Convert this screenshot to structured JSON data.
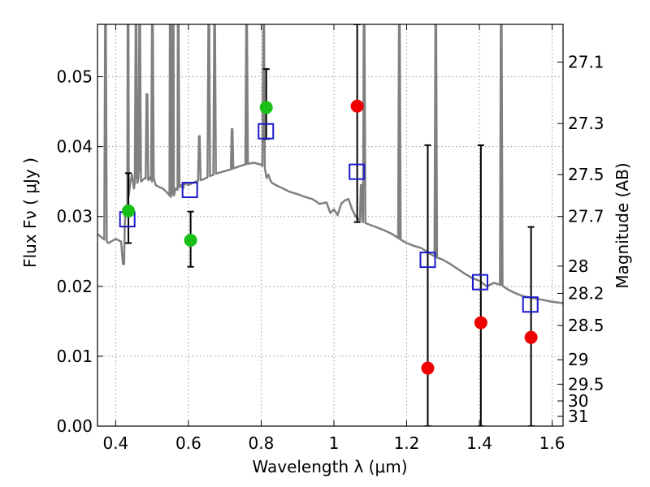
{
  "chart_data": {
    "type": "scatter",
    "xlabel": "Wavelength  λ (μm)",
    "ylabel": "Flux  Fν  ( μJy )",
    "y2label": "Magnitude (AB)",
    "xlim": [
      0.35,
      1.63
    ],
    "ylim": [
      0.0,
      0.0575
    ],
    "grid": true,
    "x_ticks": [
      0.4,
      0.6,
      0.8,
      1.0,
      1.2,
      1.4,
      1.6
    ],
    "x_tick_labels": [
      "0.4",
      "0.6",
      "0.8",
      "1",
      "1.2",
      "1.4",
      "1.6"
    ],
    "y_ticks": [
      0.0,
      0.01,
      0.02,
      0.03,
      0.04,
      0.05
    ],
    "y_tick_labels": [
      "0.00",
      "0.01",
      "0.02",
      "0.03",
      "0.04",
      "0.05"
    ],
    "mag_ticks": [
      {
        "label": "27.1",
        "flux": 0.0521
      },
      {
        "label": "27.3",
        "flux": 0.0433
      },
      {
        "label": "27.5",
        "flux": 0.036
      },
      {
        "label": "27.7",
        "flux": 0.03
      },
      {
        "label": "28",
        "flux": 0.0229
      },
      {
        "label": "28.2",
        "flux": 0.019
      },
      {
        "label": "28.5",
        "flux": 0.0144
      },
      {
        "label": "29",
        "flux": 0.0095
      },
      {
        "label": "29.5",
        "flux": 0.006
      },
      {
        "label": "30",
        "flux": 0.0036
      },
      {
        "label": "31",
        "flux": 0.0014
      }
    ],
    "colors": {
      "sed": "#808080",
      "green": "#18c018",
      "red": "#ee0000",
      "model_box": "#1a1acc",
      "errorbar": "#000000",
      "grid": "#9a9a9a"
    },
    "model_sed": {
      "x": [
        0.35,
        0.38,
        0.4,
        0.415,
        0.42,
        0.423,
        0.425,
        0.428,
        0.432,
        0.436,
        0.44,
        0.445,
        0.45,
        0.455,
        0.46,
        0.465,
        0.47,
        0.48,
        0.49,
        0.495,
        0.5,
        0.505,
        0.51,
        0.52,
        0.53,
        0.54,
        0.548,
        0.552,
        0.556,
        0.56,
        0.565,
        0.57,
        0.58,
        0.585,
        0.59,
        0.6,
        0.62,
        0.64,
        0.66,
        0.68,
        0.7,
        0.72,
        0.74,
        0.76,
        0.78,
        0.8,
        0.81,
        0.815,
        0.82,
        0.825,
        0.83,
        0.84,
        0.86,
        0.88,
        0.9,
        0.92,
        0.94,
        0.95,
        0.96,
        0.98,
        0.99,
        1.0,
        1.01,
        1.02,
        1.03,
        1.04,
        1.05,
        1.06,
        1.07,
        1.08,
        1.1,
        1.12,
        1.14,
        1.16,
        1.18,
        1.2,
        1.22,
        1.24,
        1.26,
        1.28,
        1.3,
        1.32,
        1.34,
        1.36,
        1.38,
        1.4,
        1.42,
        1.44,
        1.46,
        1.48,
        1.5,
        1.52,
        1.54,
        1.56,
        1.58,
        1.6,
        1.63
      ],
      "y": [
        0.0275,
        0.0262,
        0.0268,
        0.0264,
        0.0232,
        0.0232,
        0.029,
        0.031,
        0.0318,
        0.033,
        0.0348,
        0.036,
        0.034,
        0.0355,
        0.0348,
        0.0365,
        0.035,
        0.0355,
        0.0352,
        0.0356,
        0.035,
        0.0354,
        0.0345,
        0.0342,
        0.034,
        0.0335,
        0.033,
        0.0328,
        0.0335,
        0.033,
        0.034,
        0.0338,
        0.0345,
        0.034,
        0.0348,
        0.0345,
        0.035,
        0.0353,
        0.0358,
        0.0362,
        0.0365,
        0.0368,
        0.0372,
        0.0375,
        0.0377,
        0.0374,
        0.037,
        0.0355,
        0.036,
        0.0352,
        0.0348,
        0.0345,
        0.034,
        0.0335,
        0.0332,
        0.0328,
        0.0325,
        0.0322,
        0.0318,
        0.032,
        0.0305,
        0.031,
        0.0302,
        0.0318,
        0.0323,
        0.0325,
        0.031,
        0.03,
        0.0295,
        0.0292,
        0.0288,
        0.0284,
        0.028,
        0.0275,
        0.0268,
        0.0262,
        0.0258,
        0.0255,
        0.0248,
        0.0242,
        0.0238,
        0.0232,
        0.0225,
        0.0218,
        0.0212,
        0.0208,
        0.02,
        0.0205,
        0.0202,
        0.0195,
        0.019,
        0.0186,
        0.0184,
        0.0182,
        0.018,
        0.0178,
        0.0176
      ],
      "emission_lines": [
        {
          "x": 0.372,
          "peak": 0.0575
        },
        {
          "x": 0.434,
          "peak": 0.0575
        },
        {
          "x": 0.456,
          "peak": 0.0575
        },
        {
          "x": 0.466,
          "peak": 0.0575
        },
        {
          "x": 0.486,
          "peak": 0.0475
        },
        {
          "x": 0.501,
          "peak": 0.0575
        },
        {
          "x": 0.55,
          "peak": 0.0575
        },
        {
          "x": 0.558,
          "peak": 0.0575
        },
        {
          "x": 0.572,
          "peak": 0.0575
        },
        {
          "x": 0.63,
          "peak": 0.0415
        },
        {
          "x": 0.656,
          "peak": 0.0575
        },
        {
          "x": 0.672,
          "peak": 0.0575
        },
        {
          "x": 0.72,
          "peak": 0.0425
        },
        {
          "x": 0.76,
          "peak": 0.0575
        },
        {
          "x": 0.807,
          "peak": 0.0575
        },
        {
          "x": 1.075,
          "peak": 0.0345
        },
        {
          "x": 1.083,
          "peak": 0.0575
        },
        {
          "x": 1.18,
          "peak": 0.0575
        },
        {
          "x": 1.28,
          "peak": 0.0575
        },
        {
          "x": 1.46,
          "peak": 0.0575
        }
      ]
    },
    "green_points": [
      {
        "x": 0.435,
        "y": 0.0308
      },
      {
        "x": 0.606,
        "y": 0.0266
      },
      {
        "x": 0.814,
        "y": 0.0456
      }
    ],
    "red_points": [
      {
        "x": 1.064,
        "y": 0.0458
      },
      {
        "x": 1.258,
        "y": 0.0083
      },
      {
        "x": 1.404,
        "y": 0.0148
      },
      {
        "x": 1.542,
        "y": 0.0127
      }
    ],
    "model_photometry": [
      {
        "x": 0.432,
        "y": 0.0296
      },
      {
        "x": 0.604,
        "y": 0.0338
      },
      {
        "x": 0.813,
        "y": 0.0422
      },
      {
        "x": 1.063,
        "y": 0.0364
      },
      {
        "x": 1.258,
        "y": 0.0238
      },
      {
        "x": 1.402,
        "y": 0.0206
      },
      {
        "x": 1.54,
        "y": 0.0174
      }
    ],
    "error_bars": [
      {
        "x": 0.435,
        "lo": 0.0262,
        "hi": 0.0362
      },
      {
        "x": 0.606,
        "lo": 0.0228,
        "hi": 0.0307
      },
      {
        "x": 0.814,
        "lo": 0.0411,
        "hi": 0.0511
      },
      {
        "x": 1.064,
        "lo": 0.0292,
        "hi": 0.0575
      },
      {
        "x": 1.258,
        "lo": 0.0,
        "hi": 0.0402
      },
      {
        "x": 1.404,
        "lo": 0.0,
        "hi": 0.0402
      },
      {
        "x": 1.542,
        "lo": 0.0,
        "hi": 0.0285
      }
    ]
  }
}
